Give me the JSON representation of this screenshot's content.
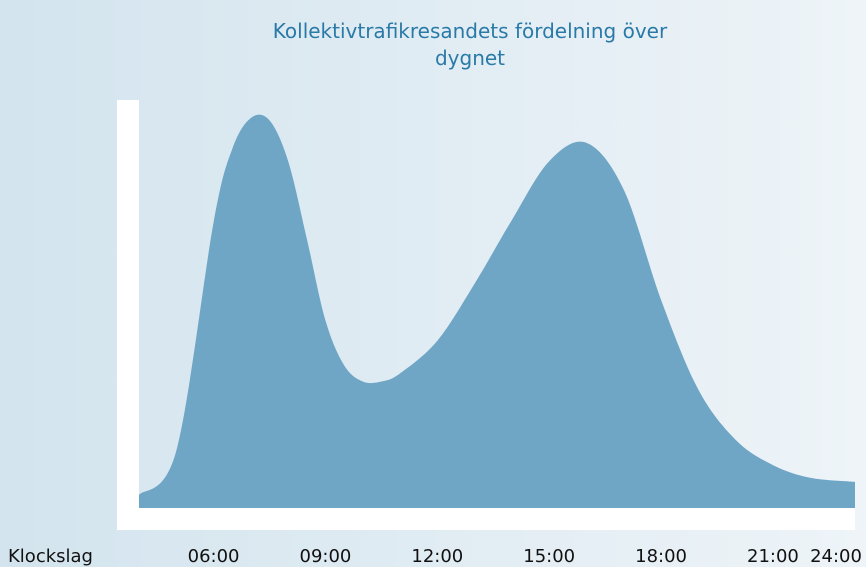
{
  "chart_data": {
    "type": "area",
    "title": "Kollektivtrafikresandets fördelning över dygnet",
    "xlabel": "Klockslag",
    "x": [
      4,
      5,
      6,
      6.5,
      7,
      7.5,
      8,
      8.5,
      9,
      9.5,
      10,
      10.5,
      11,
      12,
      13,
      14,
      15,
      16,
      17,
      18,
      19,
      20,
      21,
      22,
      23.2
    ],
    "values": [
      3.2,
      14,
      70,
      88,
      95.6,
      95,
      85,
      66,
      46,
      35,
      31,
      31,
      33,
      41,
      55,
      70.6,
      85,
      89.5,
      78,
      51,
      29,
      16.7,
      10.5,
      7.4,
      6.4
    ],
    "color": "#6fa6c6",
    "xlim": [
      4,
      23.2
    ],
    "xticks": [
      {
        "value": 6,
        "label": "06:00"
      },
      {
        "value": 9,
        "label": "09:00"
      },
      {
        "value": 12,
        "label": "12:00"
      },
      {
        "value": 15,
        "label": "15:00"
      },
      {
        "value": 18,
        "label": "18:00"
      },
      {
        "value": 21,
        "label": "21:00"
      },
      {
        "value": 24,
        "label": "24:00"
      }
    ],
    "ylim": [
      0,
      100
    ]
  }
}
